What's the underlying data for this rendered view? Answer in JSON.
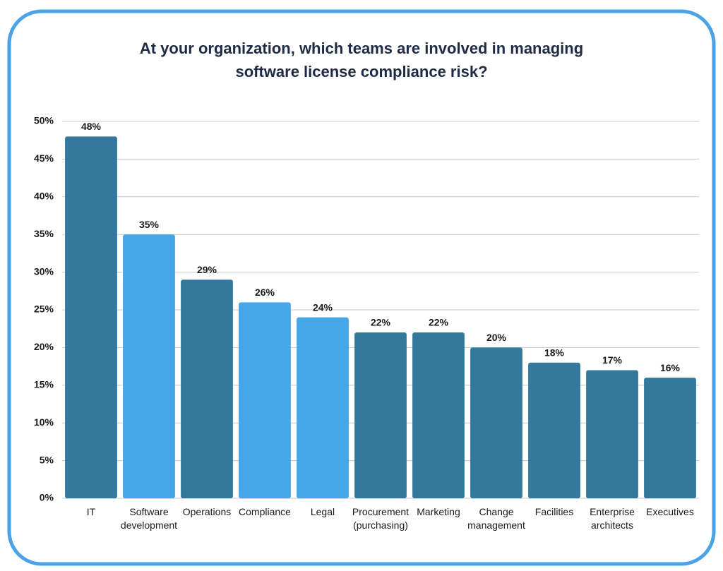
{
  "chart_data": {
    "type": "bar",
    "title": "At your organization, which teams are involved in managing software license compliance risk?",
    "categories": [
      "IT",
      "Software development",
      "Operations",
      "Compliance",
      "Legal",
      "Procurement (purchasing)",
      "Marketing",
      "Change management",
      "Facilities",
      "Enterprise architects",
      "Executives"
    ],
    "values": [
      48,
      35,
      29,
      26,
      24,
      22,
      22,
      20,
      18,
      17,
      16
    ],
    "value_labels": [
      "48%",
      "35%",
      "29%",
      "26%",
      "24%",
      "22%",
      "22%",
      "20%",
      "18%",
      "17%",
      "16%"
    ],
    "colors": [
      "#33799e",
      "#47a6e8",
      "#33799e",
      "#47a6e8",
      "#47a6e8",
      "#33799e",
      "#33799e",
      "#33799e",
      "#33799e",
      "#33799e",
      "#33799e"
    ],
    "ylim": [
      0,
      50
    ],
    "yticks": [
      {
        "value": 0,
        "label": "0%"
      },
      {
        "value": 5,
        "label": "5%"
      },
      {
        "value": 10,
        "label": "10%"
      },
      {
        "value": 15,
        "label": "15%"
      },
      {
        "value": 20,
        "label": "20%"
      },
      {
        "value": 25,
        "label": "25%"
      },
      {
        "value": 30,
        "label": "30%"
      },
      {
        "value": 35,
        "label": "35%"
      },
      {
        "value": 40,
        "label": "40%"
      },
      {
        "value": 45,
        "label": "45%"
      },
      {
        "value": 50,
        "label": "50%"
      }
    ],
    "grid": true
  }
}
